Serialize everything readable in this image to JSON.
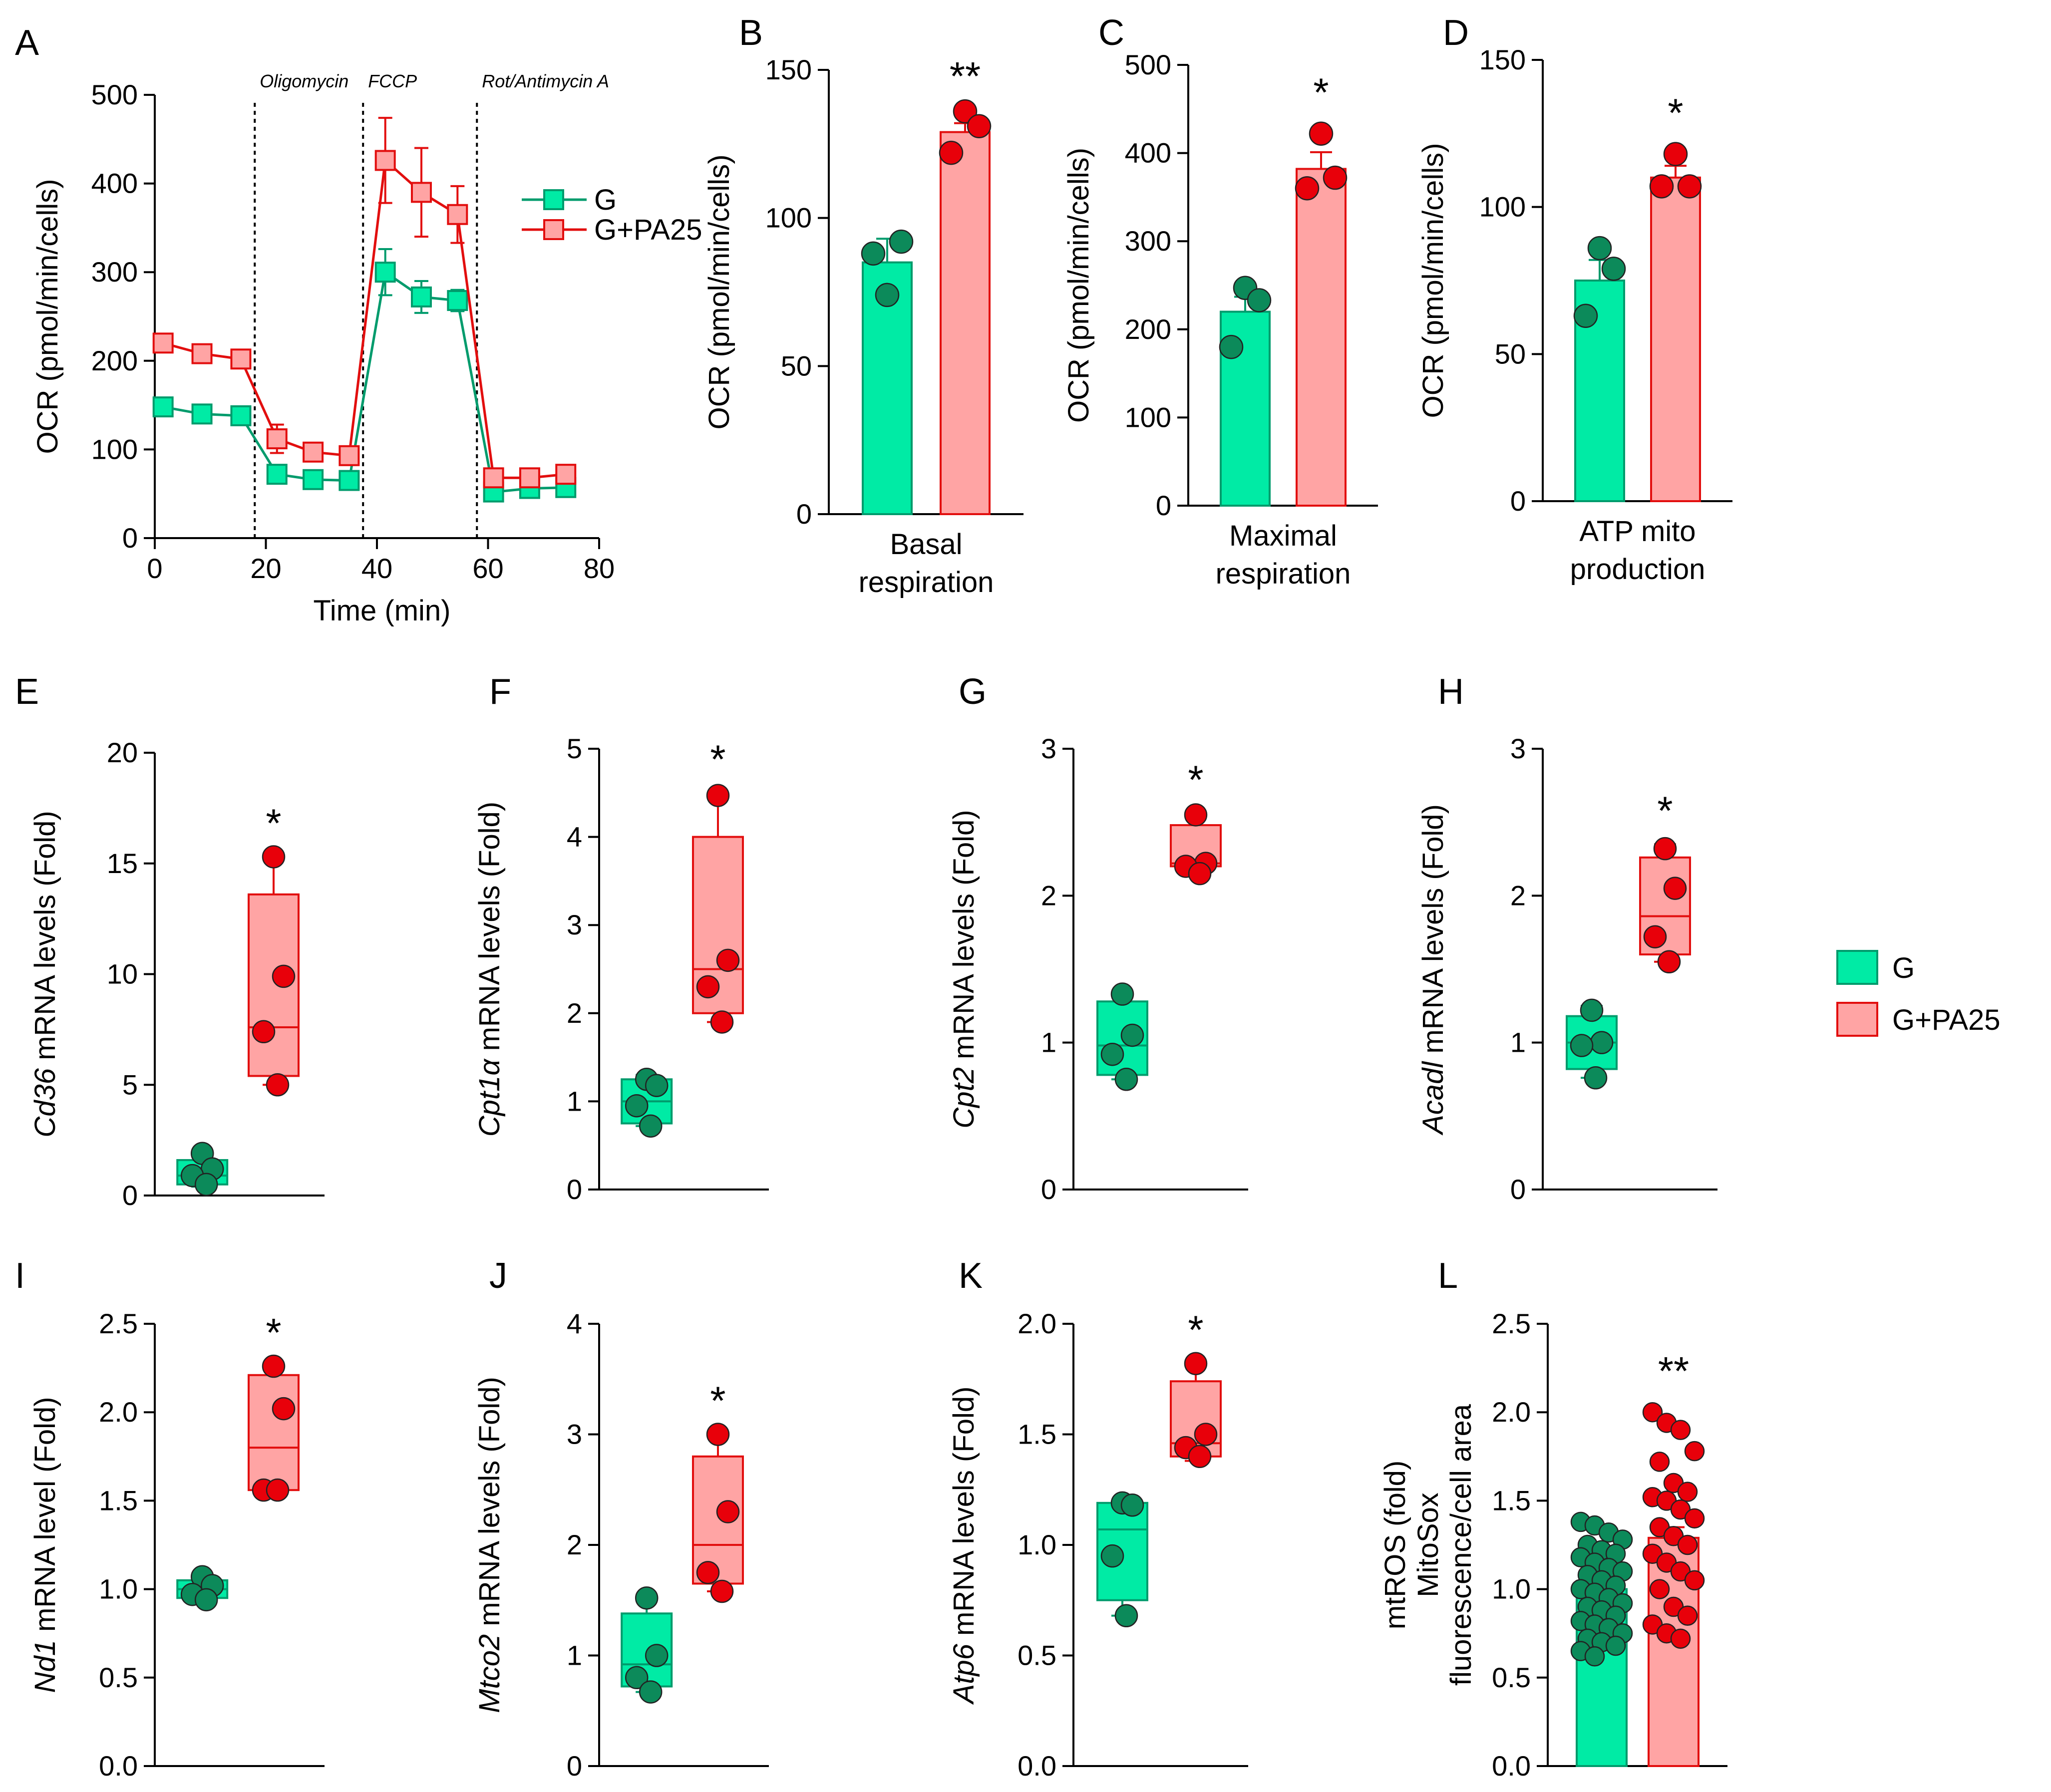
{
  "colors": {
    "g_fill": "#00EBA5",
    "g_stroke": "#009B6C",
    "g_point": "#0C8A5A",
    "pa_fill": "#FFA4A4",
    "pa_stroke": "#E20E0E",
    "pa_point": "#E8000A"
  },
  "legend": {
    "items": [
      "G",
      "G+PA25"
    ]
  },
  "chart_data": [
    {
      "id": "A",
      "type": "line",
      "panel_label": "A",
      "xlabel": "Time (min)",
      "ylabel": "OCR (pmol/min/cells)",
      "xlim": [
        0,
        80
      ],
      "ylim": [
        0,
        500
      ],
      "xticks": [
        0,
        20,
        40,
        60,
        80
      ],
      "yticks": [
        0,
        100,
        200,
        300,
        400,
        500
      ],
      "injections": [
        {
          "label": "Oligomycin",
          "x": 18
        },
        {
          "label": "FCCP",
          "x": 37.5
        },
        {
          "label": "Rot/Antimycin A",
          "x": 58
        }
      ],
      "legend": [
        "G",
        "G+PA25"
      ],
      "series": [
        {
          "name": "G",
          "x": [
            1.5,
            8.5,
            15.5,
            22,
            28.5,
            35,
            41.5,
            48,
            54.5,
            61,
            67.5,
            74
          ],
          "y": [
            148,
            140,
            138,
            72,
            66,
            65,
            300,
            272,
            268,
            52,
            56,
            57
          ],
          "err": [
            6,
            6,
            6,
            5,
            4,
            4,
            26,
            18,
            12,
            6,
            5,
            5
          ]
        },
        {
          "name": "G+PA25",
          "x": [
            1.5,
            8.5,
            15.5,
            22,
            28.5,
            35,
            41.5,
            48,
            54.5,
            61,
            67.5,
            74
          ],
          "y": [
            220,
            208,
            202,
            112,
            97,
            93,
            426,
            390,
            365,
            68,
            68,
            72
          ],
          "err": [
            6,
            6,
            6,
            16,
            6,
            6,
            48,
            50,
            32,
            6,
            5,
            6
          ]
        }
      ]
    },
    {
      "id": "B",
      "type": "bar",
      "panel_label": "B",
      "ylabel": "OCR (pmol/min/cells)",
      "ylim": [
        0,
        150
      ],
      "yticks": [
        0,
        50,
        100,
        150
      ],
      "xlabel": [
        "Basal",
        "respiration"
      ],
      "significance": "**",
      "series": [
        {
          "name": "G",
          "mean": 85,
          "sem": 8,
          "points": [
            74,
            92,
            88
          ]
        },
        {
          "name": "G+PA25",
          "mean": 129,
          "sem": 3,
          "points": [
            136,
            131,
            122
          ]
        }
      ]
    },
    {
      "id": "C",
      "type": "bar",
      "panel_label": "C",
      "ylabel": "OCR (pmol/min/cells)",
      "ylim": [
        0,
        500
      ],
      "yticks": [
        0,
        100,
        200,
        300,
        400,
        500
      ],
      "xlabel": [
        "Maximal",
        "respiration"
      ],
      "significance": "*",
      "series": [
        {
          "name": "G",
          "mean": 220,
          "sem": 17,
          "points": [
            247,
            233,
            180
          ]
        },
        {
          "name": "G+PA25",
          "mean": 382,
          "sem": 19,
          "points": [
            422,
            372,
            360
          ]
        }
      ]
    },
    {
      "id": "D",
      "type": "bar",
      "panel_label": "D",
      "ylabel": "OCR (pmol/min/cells)",
      "ylim": [
        0,
        150
      ],
      "yticks": [
        0,
        50,
        100,
        150
      ],
      "xlabel": [
        "ATP mito",
        "production"
      ],
      "significance": "*",
      "series": [
        {
          "name": "G",
          "mean": 75,
          "sem": 7,
          "points": [
            86,
            79,
            63
          ]
        },
        {
          "name": "G+PA25",
          "mean": 110,
          "sem": 4,
          "points": [
            118,
            107,
            107
          ]
        }
      ]
    },
    {
      "id": "E",
      "type": "box",
      "panel_label": "E",
      "gene": "Cd36",
      "ylabel_suffix": " mRNA levels (Fold)",
      "ylim": [
        0,
        20
      ],
      "yticks": [
        0,
        5,
        10,
        15,
        20
      ],
      "significance": "*",
      "series": [
        {
          "name": "G",
          "min": 0.4,
          "q1": 0.5,
          "median": 0.9,
          "q3": 1.6,
          "max": 1.9,
          "points": [
            1.9,
            1.2,
            0.9,
            0.5
          ]
        },
        {
          "name": "G+PA25",
          "min": 5.0,
          "q1": 5.4,
          "median": 7.6,
          "q3": 13.6,
          "max": 15.3,
          "points": [
            15.3,
            9.9,
            7.4,
            5.0
          ]
        }
      ]
    },
    {
      "id": "F",
      "type": "box",
      "panel_label": "F",
      "gene": "Cpt1α",
      "ylabel_suffix": " mRNA levels (Fold)",
      "ylim": [
        0,
        5
      ],
      "yticks": [
        0,
        1,
        2,
        3,
        4,
        5
      ],
      "significance": "*",
      "series": [
        {
          "name": "G",
          "min": 0.72,
          "q1": 0.75,
          "median": 1.0,
          "q3": 1.25,
          "max": 1.3,
          "points": [
            1.25,
            1.18,
            0.95,
            0.72
          ]
        },
        {
          "name": "G+PA25",
          "min": 1.9,
          "q1": 2.0,
          "median": 2.5,
          "q3": 4.0,
          "max": 4.5,
          "points": [
            4.47,
            2.6,
            2.3,
            1.9
          ]
        }
      ]
    },
    {
      "id": "G",
      "type": "box",
      "panel_label": "G",
      "gene": "Cpt2",
      "ylabel_suffix": " mRNA levels (Fold)",
      "ylim": [
        0,
        3
      ],
      "yticks": [
        0,
        1,
        2,
        3
      ],
      "significance": "*",
      "series": [
        {
          "name": "G",
          "min": 0.75,
          "q1": 0.78,
          "median": 0.98,
          "q3": 1.28,
          "max": 1.33,
          "points": [
            1.33,
            1.05,
            0.92,
            0.75
          ]
        },
        {
          "name": "G+PA25",
          "min": 2.15,
          "q1": 2.2,
          "median": 2.22,
          "q3": 2.48,
          "max": 2.56,
          "points": [
            2.55,
            2.22,
            2.2,
            2.15
          ]
        }
      ]
    },
    {
      "id": "H",
      "type": "box",
      "panel_label": "H",
      "gene": "Acadl",
      "ylabel_suffix": " mRNA levels (Fold)",
      "ylim": [
        0,
        3
      ],
      "yticks": [
        0,
        1,
        2,
        3
      ],
      "significance": "*",
      "series": [
        {
          "name": "G",
          "min": 0.76,
          "q1": 0.82,
          "median": 1.0,
          "q3": 1.18,
          "max": 1.25,
          "points": [
            1.22,
            1.0,
            0.98,
            0.76
          ]
        },
        {
          "name": "G+PA25",
          "min": 1.55,
          "q1": 1.6,
          "median": 1.86,
          "q3": 2.26,
          "max": 2.35,
          "points": [
            2.32,
            2.05,
            1.72,
            1.55
          ]
        }
      ]
    },
    {
      "id": "I",
      "type": "box",
      "panel_label": "I",
      "gene": "Nd1",
      "ylabel_suffix": " mRNA level (Fold)",
      "ylim": [
        0,
        2.5
      ],
      "yticks": [
        "0.0",
        "0.5",
        "1.0",
        "1.5",
        "2.0",
        "2.5"
      ],
      "significance": "*",
      "series": [
        {
          "name": "G",
          "min": 0.93,
          "q1": 0.95,
          "median": 1.0,
          "q3": 1.05,
          "max": 1.07,
          "points": [
            1.07,
            1.02,
            0.97,
            0.94
          ]
        },
        {
          "name": "G+PA25",
          "min": 1.55,
          "q1": 1.56,
          "median": 1.8,
          "q3": 2.21,
          "max": 2.26,
          "points": [
            2.26,
            2.02,
            1.56,
            1.56
          ]
        }
      ]
    },
    {
      "id": "J",
      "type": "box",
      "panel_label": "J",
      "gene": "Mtco2",
      "ylabel_suffix": " mRNA levels (Fold)",
      "ylim": [
        0,
        4
      ],
      "yticks": [
        0,
        1,
        2,
        3,
        4
      ],
      "significance": "*",
      "series": [
        {
          "name": "G",
          "min": 0.67,
          "q1": 0.72,
          "median": 0.92,
          "q3": 1.38,
          "max": 1.52,
          "points": [
            1.52,
            1.0,
            0.8,
            0.67
          ]
        },
        {
          "name": "G+PA25",
          "min": 1.58,
          "q1": 1.65,
          "median": 2.0,
          "q3": 2.8,
          "max": 3.0,
          "points": [
            3.0,
            2.3,
            1.75,
            1.58
          ]
        }
      ]
    },
    {
      "id": "K",
      "type": "box",
      "panel_label": "K",
      "gene": "Atp6",
      "ylabel_suffix": " mRNA levels (Fold)",
      "ylim": [
        0,
        2.0
      ],
      "yticks": [
        "0.0",
        "0.5",
        "1.0",
        "1.5",
        "2.0"
      ],
      "significance": "*",
      "series": [
        {
          "name": "G",
          "min": 0.68,
          "q1": 0.75,
          "median": 1.07,
          "q3": 1.19,
          "max": 1.19,
          "points": [
            1.19,
            1.18,
            0.95,
            0.68
          ]
        },
        {
          "name": "G+PA25",
          "min": 1.38,
          "q1": 1.4,
          "median": 1.46,
          "q3": 1.74,
          "max": 1.82,
          "points": [
            1.82,
            1.5,
            1.44,
            1.4
          ]
        }
      ]
    },
    {
      "id": "L",
      "type": "bar_scatter",
      "panel_label": "L",
      "ylabel": [
        "mtROS (fold)",
        "MitoSox",
        "fluorescence/cell area"
      ],
      "ylim": [
        0,
        2.5
      ],
      "yticks": [
        "0.0",
        "0.5",
        "1.0",
        "1.5",
        "2.0",
        "2.5"
      ],
      "significance": "**",
      "series": [
        {
          "name": "G",
          "mean": 1.0,
          "sem": 0.04,
          "points": [
            1.38,
            1.36,
            1.32,
            1.28,
            1.25,
            1.22,
            1.2,
            1.18,
            1.15,
            1.12,
            1.1,
            1.08,
            1.05,
            1.02,
            1.0,
            0.98,
            0.95,
            0.92,
            0.9,
            0.88,
            0.85,
            0.82,
            0.8,
            0.78,
            0.75,
            0.72,
            0.7,
            0.68,
            0.65,
            0.62
          ]
        },
        {
          "name": "G+PA25",
          "mean": 1.29,
          "sem": 0.06,
          "points": [
            2.0,
            1.94,
            1.9,
            1.78,
            1.72,
            1.6,
            1.55,
            1.52,
            1.5,
            1.45,
            1.4,
            1.35,
            1.3,
            1.25,
            1.2,
            1.15,
            1.1,
            1.05,
            1.0,
            0.9,
            0.85,
            0.8,
            0.75,
            0.72
          ]
        }
      ]
    }
  ]
}
